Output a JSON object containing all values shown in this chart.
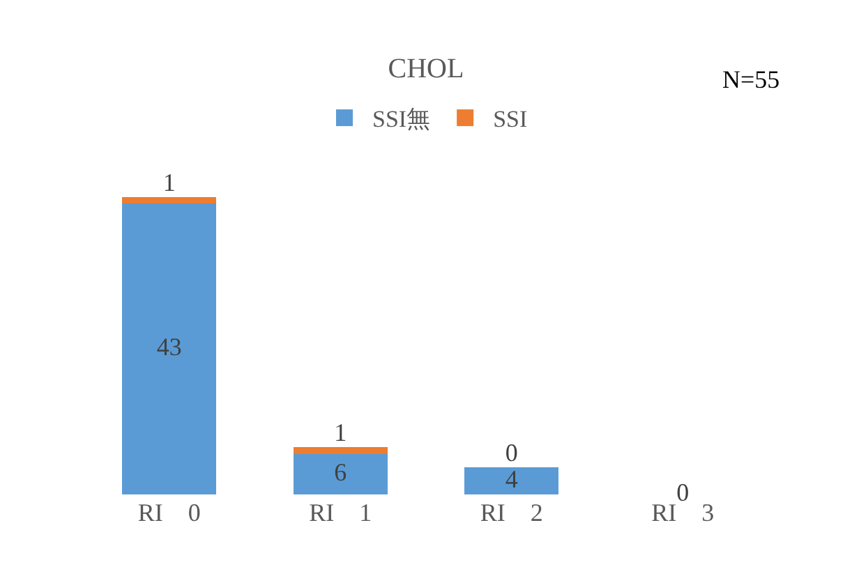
{
  "chart_data": {
    "type": "bar",
    "title": "CHOL",
    "stacked": true,
    "legend": "top",
    "categories": [
      "RI　0",
      "RI　1",
      "RI　2",
      "RI　3"
    ],
    "series": [
      {
        "name": "SSI無",
        "color": "#5b9bd5",
        "values": [
          43,
          6,
          4,
          0
        ],
        "value_labels": [
          "43",
          "6",
          "4",
          "0"
        ]
      },
      {
        "name": "SSI",
        "color": "#ed7d31",
        "values": [
          1,
          1,
          0,
          0
        ],
        "value_labels": [
          "1",
          "1",
          "0",
          null
        ]
      }
    ],
    "annotations": [
      "N=55"
    ]
  }
}
